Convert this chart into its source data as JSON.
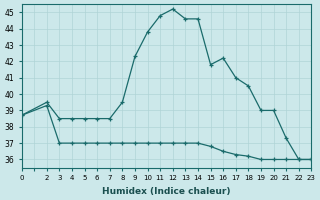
{
  "line1_x": [
    0,
    2,
    3,
    4,
    5,
    6,
    7,
    8,
    9,
    10,
    11,
    12,
    13,
    14,
    15,
    16,
    17,
    18,
    19,
    20,
    21,
    22,
    23
  ],
  "line1_y": [
    38.7,
    39.5,
    38.5,
    38.5,
    38.5,
    38.5,
    38.5,
    39.5,
    42.3,
    43.8,
    44.8,
    45.2,
    44.6,
    44.6,
    41.8,
    42.2,
    41.0,
    40.5,
    39.0,
    39.0,
    37.3,
    36.0,
    36.0
  ],
  "line2_x": [
    0,
    2,
    3,
    4,
    5,
    6,
    7,
    8,
    9,
    10,
    11,
    12,
    13,
    14,
    15,
    16,
    17,
    18,
    19,
    20,
    21,
    22,
    23
  ],
  "line2_y": [
    38.7,
    39.3,
    37.0,
    37.0,
    37.0,
    37.0,
    37.0,
    37.0,
    37.0,
    37.0,
    37.0,
    37.0,
    37.0,
    37.0,
    36.8,
    36.5,
    36.3,
    36.2,
    36.0,
    36.0,
    36.0,
    36.0,
    36.0
  ],
  "bg_color": "#cce8ea",
  "line_color": "#1a6b6b",
  "xlim": [
    0,
    23
  ],
  "ylim": [
    35.5,
    45.5
  ],
  "yticks": [
    36,
    37,
    38,
    39,
    40,
    41,
    42,
    43,
    44,
    45
  ],
  "xtick_labels": [
    "0",
    "",
    "2",
    "3",
    "4",
    "5",
    "6",
    "7",
    "8",
    "9",
    "10",
    "11",
    "12",
    "13",
    "14",
    "15",
    "16",
    "17",
    "18",
    "19",
    "20",
    "21",
    "22",
    "23"
  ],
  "xlabel": "Humidex (Indice chaleur)",
  "grid_color": "#b0d4d6"
}
